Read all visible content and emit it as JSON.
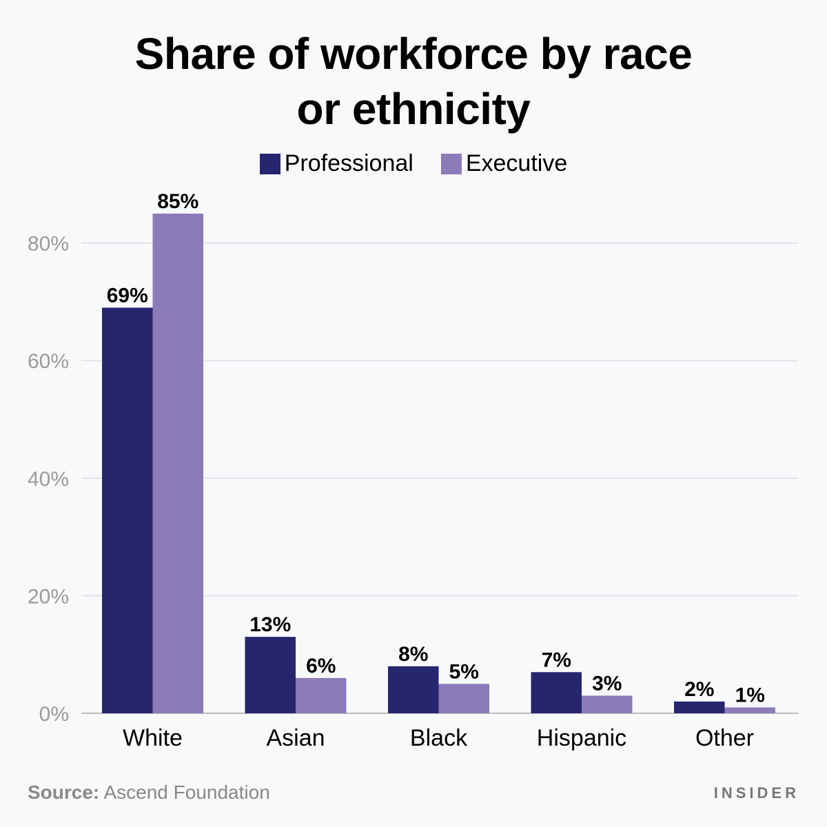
{
  "title_lines": [
    "Share of workforce by race",
    "or ethnicity"
  ],
  "source_label": "Source:",
  "source_text": "Ascend Foundation",
  "brand": "INSIDER",
  "chart_data": {
    "type": "bar",
    "title": "Share of workforce by race or ethnicity",
    "categories": [
      "White",
      "Asian",
      "Black",
      "Hispanic",
      "Other"
    ],
    "series": [
      {
        "name": "Professional",
        "color": "#26266e",
        "values": [
          69,
          13,
          8,
          7,
          2
        ],
        "labels": [
          "69%",
          "13%",
          "8%",
          "7%",
          "2%"
        ]
      },
      {
        "name": "Executive",
        "color": "#8b7bb8",
        "values": [
          85,
          6,
          5,
          3,
          1
        ],
        "labels": [
          "85%",
          "6%",
          "5%",
          "3%",
          "1%"
        ]
      }
    ],
    "yticks": [
      0,
      20,
      40,
      60,
      80
    ],
    "ytick_labels": [
      "0%",
      "20%",
      "40%",
      "60%",
      "80%"
    ],
    "ylim": [
      0,
      95
    ],
    "grid": true,
    "legend_position": "top-center"
  }
}
